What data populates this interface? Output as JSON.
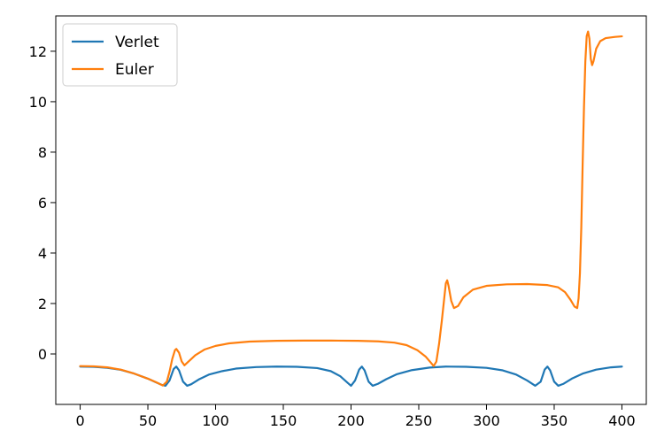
{
  "chart_data": {
    "type": "line",
    "title": "",
    "xlabel": "",
    "ylabel": "",
    "xlim": [
      -18,
      418
    ],
    "ylim": [
      -2.0,
      13.4
    ],
    "grid": false,
    "legend_position": "upper-left",
    "xticks": [
      0,
      50,
      100,
      150,
      200,
      250,
      300,
      350,
      400
    ],
    "xtick_labels": [
      "0",
      "50",
      "100",
      "150",
      "200",
      "250",
      "300",
      "350",
      "400"
    ],
    "yticks": [
      0,
      2,
      4,
      6,
      8,
      10,
      12
    ],
    "ytick_labels": [
      "0",
      "2",
      "4",
      "6",
      "8",
      "10",
      "12"
    ],
    "series": [
      {
        "name": "Verlet",
        "color": "#1f77b4",
        "points": [
          [
            0,
            -0.5
          ],
          [
            10,
            -0.51
          ],
          [
            20,
            -0.55
          ],
          [
            30,
            -0.63
          ],
          [
            40,
            -0.78
          ],
          [
            50,
            -0.98
          ],
          [
            55,
            -1.1
          ],
          [
            60,
            -1.22
          ],
          [
            63,
            -1.26
          ],
          [
            66,
            -1.05
          ],
          [
            69,
            -0.6
          ],
          [
            71,
            -0.5
          ],
          [
            73,
            -0.65
          ],
          [
            76,
            -1.1
          ],
          [
            79,
            -1.26
          ],
          [
            82,
            -1.2
          ],
          [
            88,
            -1.0
          ],
          [
            95,
            -0.82
          ],
          [
            105,
            -0.68
          ],
          [
            115,
            -0.58
          ],
          [
            130,
            -0.52
          ],
          [
            145,
            -0.5
          ],
          [
            160,
            -0.51
          ],
          [
            175,
            -0.56
          ],
          [
            185,
            -0.68
          ],
          [
            192,
            -0.88
          ],
          [
            197,
            -1.12
          ],
          [
            200,
            -1.26
          ],
          [
            203,
            -1.05
          ],
          [
            206,
            -0.62
          ],
          [
            208,
            -0.5
          ],
          [
            210,
            -0.65
          ],
          [
            213,
            -1.1
          ],
          [
            216,
            -1.26
          ],
          [
            220,
            -1.18
          ],
          [
            226,
            -1.0
          ],
          [
            234,
            -0.8
          ],
          [
            245,
            -0.64
          ],
          [
            258,
            -0.54
          ],
          [
            270,
            -0.5
          ],
          [
            285,
            -0.51
          ],
          [
            300,
            -0.55
          ],
          [
            312,
            -0.65
          ],
          [
            322,
            -0.82
          ],
          [
            330,
            -1.05
          ],
          [
            336,
            -1.26
          ],
          [
            340,
            -1.1
          ],
          [
            343,
            -0.62
          ],
          [
            345,
            -0.5
          ],
          [
            347,
            -0.65
          ],
          [
            350,
            -1.1
          ],
          [
            353,
            -1.26
          ],
          [
            357,
            -1.18
          ],
          [
            363,
            -0.98
          ],
          [
            371,
            -0.78
          ],
          [
            381,
            -0.62
          ],
          [
            392,
            -0.53
          ],
          [
            400,
            -0.5
          ]
        ]
      },
      {
        "name": "Euler",
        "color": "#ff7f0e",
        "points": [
          [
            0,
            -0.48
          ],
          [
            10,
            -0.49
          ],
          [
            20,
            -0.53
          ],
          [
            30,
            -0.62
          ],
          [
            40,
            -0.78
          ],
          [
            50,
            -0.98
          ],
          [
            56,
            -1.12
          ],
          [
            61,
            -1.25
          ],
          [
            64,
            -1.1
          ],
          [
            66,
            -0.7
          ],
          [
            68,
            -0.2
          ],
          [
            70,
            0.15
          ],
          [
            71,
            0.2
          ],
          [
            73,
            0.05
          ],
          [
            75,
            -0.3
          ],
          [
            77,
            -0.45
          ],
          [
            80,
            -0.3
          ],
          [
            85,
            -0.05
          ],
          [
            92,
            0.18
          ],
          [
            100,
            0.32
          ],
          [
            110,
            0.42
          ],
          [
            125,
            0.49
          ],
          [
            145,
            0.52
          ],
          [
            165,
            0.53
          ],
          [
            185,
            0.53
          ],
          [
            205,
            0.52
          ],
          [
            220,
            0.5
          ],
          [
            232,
            0.45
          ],
          [
            241,
            0.35
          ],
          [
            249,
            0.15
          ],
          [
            255,
            -0.1
          ],
          [
            259,
            -0.35
          ],
          [
            261,
            -0.48
          ],
          [
            263,
            -0.3
          ],
          [
            265,
            0.4
          ],
          [
            267,
            1.3
          ],
          [
            269,
            2.3
          ],
          [
            270,
            2.8
          ],
          [
            271,
            2.92
          ],
          [
            272,
            2.7
          ],
          [
            274,
            2.1
          ],
          [
            276,
            1.82
          ],
          [
            279,
            1.9
          ],
          [
            283,
            2.25
          ],
          [
            290,
            2.55
          ],
          [
            300,
            2.7
          ],
          [
            315,
            2.76
          ],
          [
            330,
            2.77
          ],
          [
            345,
            2.73
          ],
          [
            353,
            2.64
          ],
          [
            358,
            2.45
          ],
          [
            362,
            2.15
          ],
          [
            365,
            1.88
          ],
          [
            367,
            1.82
          ],
          [
            368,
            2.2
          ],
          [
            369,
            3.2
          ],
          [
            370,
            5.0
          ],
          [
            371,
            7.5
          ],
          [
            372,
            9.8
          ],
          [
            373,
            11.6
          ],
          [
            374,
            12.6
          ],
          [
            375,
            12.78
          ],
          [
            376,
            12.5
          ],
          [
            377,
            11.7
          ],
          [
            378,
            11.45
          ],
          [
            379,
            11.6
          ],
          [
            381,
            12.1
          ],
          [
            384,
            12.4
          ],
          [
            388,
            12.52
          ],
          [
            395,
            12.57
          ],
          [
            400,
            12.59
          ]
        ]
      }
    ]
  }
}
